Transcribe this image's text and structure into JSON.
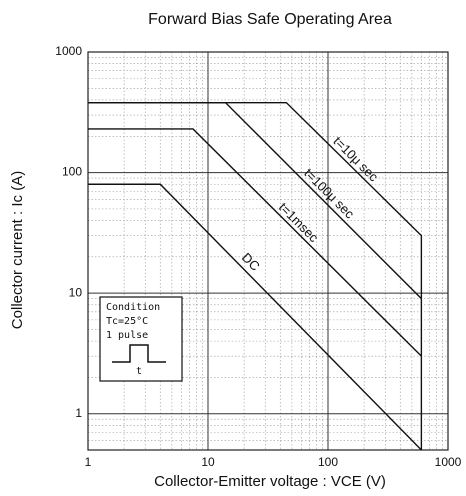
{
  "chart_data": {
    "type": "line",
    "title": "Forward Bias Safe Operating Area",
    "x_label": "Collector-Emitter voltage : VCE (V)",
    "y_label": "Collector current : Ic (A)",
    "log_x": true,
    "log_y": true,
    "grid": true,
    "xlim": [
      1,
      1000
    ],
    "ylim": [
      0.5,
      1000
    ],
    "xticks": [
      1,
      10,
      100,
      1000
    ],
    "yticks": [
      1,
      10,
      100,
      1000
    ],
    "minor_xticks": [
      2,
      3,
      4,
      5,
      6,
      7,
      8,
      9,
      20,
      30,
      40,
      50,
      60,
      70,
      80,
      90,
      200,
      300,
      400,
      500,
      600,
      700,
      800,
      900
    ],
    "minor_yticks": [
      0.6,
      0.7,
      0.8,
      0.9,
      2,
      3,
      4,
      5,
      6,
      7,
      8,
      9,
      20,
      30,
      40,
      50,
      60,
      70,
      80,
      90,
      200,
      300,
      400,
      500,
      600,
      700,
      800,
      900
    ],
    "color": "#111111",
    "series": [
      {
        "name": "t=10μ sec",
        "x": [
          1,
          45,
          600,
          600
        ],
        "values": [
          380,
          380,
          30,
          0.5
        ],
        "label_at": [
          150,
          114
        ]
      },
      {
        "name": "t=100μ sec",
        "x": [
          1,
          14,
          600
        ],
        "values": [
          380,
          380,
          9
        ],
        "label_at": [
          90,
          59
        ]
      },
      {
        "name": "t=1msec",
        "x": [
          1,
          7.5,
          600
        ],
        "values": [
          230,
          230,
          3
        ],
        "label_at": [
          50,
          34
        ]
      },
      {
        "name": "DC",
        "x": [
          1,
          4,
          600
        ],
        "values": [
          80,
          80,
          0.5
        ],
        "label_at": [
          20,
          16
        ]
      }
    ],
    "condition": {
      "title": "Condition",
      "temp": "Tc=25°C",
      "pulse": "1 pulse",
      "width": "t"
    }
  }
}
